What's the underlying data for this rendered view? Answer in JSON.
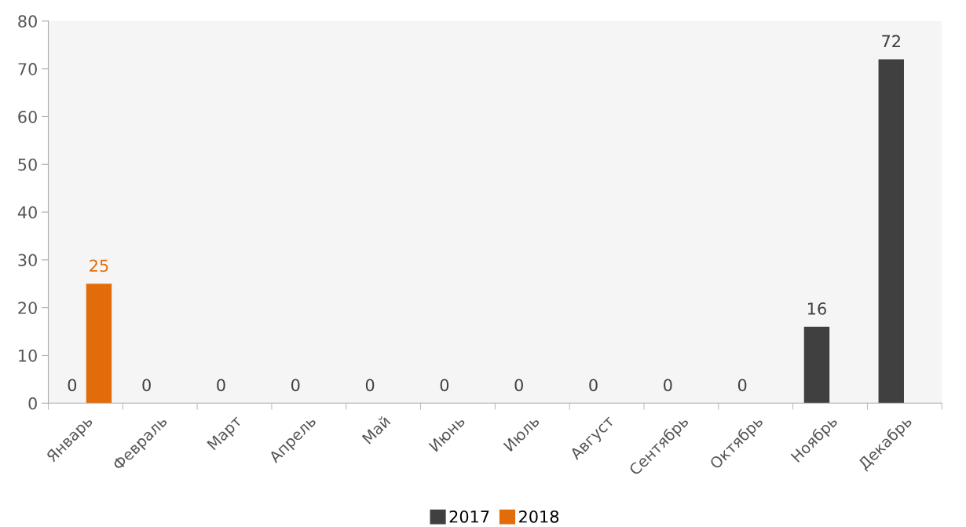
{
  "chart_data": {
    "type": "bar",
    "categories": [
      "Январь",
      "Февраль",
      "Март",
      "Апрель",
      "Май",
      "Июнь",
      "Июль",
      "Август",
      "Сентябрь",
      "Октябрь",
      "Ноябрь",
      "Декабрь"
    ],
    "series": [
      {
        "name": "2017",
        "color": "#404040",
        "values": [
          0,
          0,
          0,
          0,
          0,
          0,
          0,
          0,
          0,
          0,
          16,
          72
        ]
      },
      {
        "name": "2018",
        "color": "#e36c0a",
        "values": [
          25,
          null,
          null,
          null,
          null,
          null,
          null,
          null,
          null,
          null,
          null,
          null
        ]
      }
    ],
    "ylim": [
      0,
      80
    ],
    "yticks": [
      0,
      10,
      20,
      30,
      40,
      50,
      60,
      70,
      80
    ],
    "data_labels": true,
    "grid": false,
    "legend": "bottom"
  }
}
